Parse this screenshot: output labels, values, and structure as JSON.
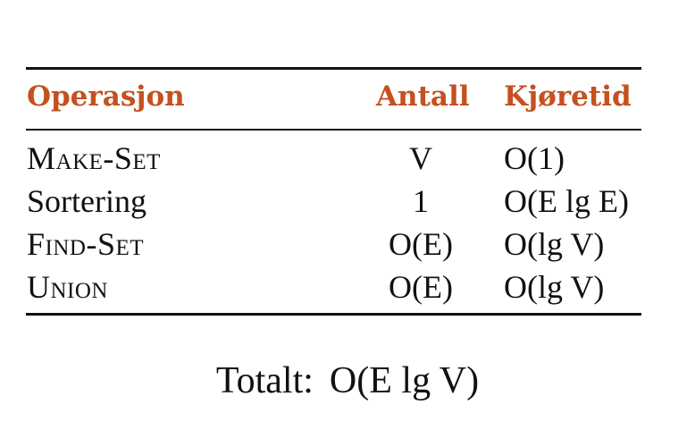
{
  "table": {
    "headers": {
      "operation": "Operasjon",
      "count": "Antall",
      "runtime": "Kjøretid"
    },
    "rows": [
      {
        "operation": "Make-Set",
        "count": "V",
        "runtime": "O(1)"
      },
      {
        "operation": "Sortering",
        "count": "1",
        "runtime": "O(E lg E)"
      },
      {
        "operation": "Find-Set",
        "count": "O(E)",
        "runtime": "O(lg V)"
      },
      {
        "operation": "Union",
        "count": "O(E)",
        "runtime": "O(lg V)"
      }
    ]
  },
  "total": {
    "label": "Totalt:",
    "value": "O(E lg V)"
  },
  "colors": {
    "header_text": "#c4511f",
    "body_text": "#111111",
    "rules": "#111111"
  }
}
